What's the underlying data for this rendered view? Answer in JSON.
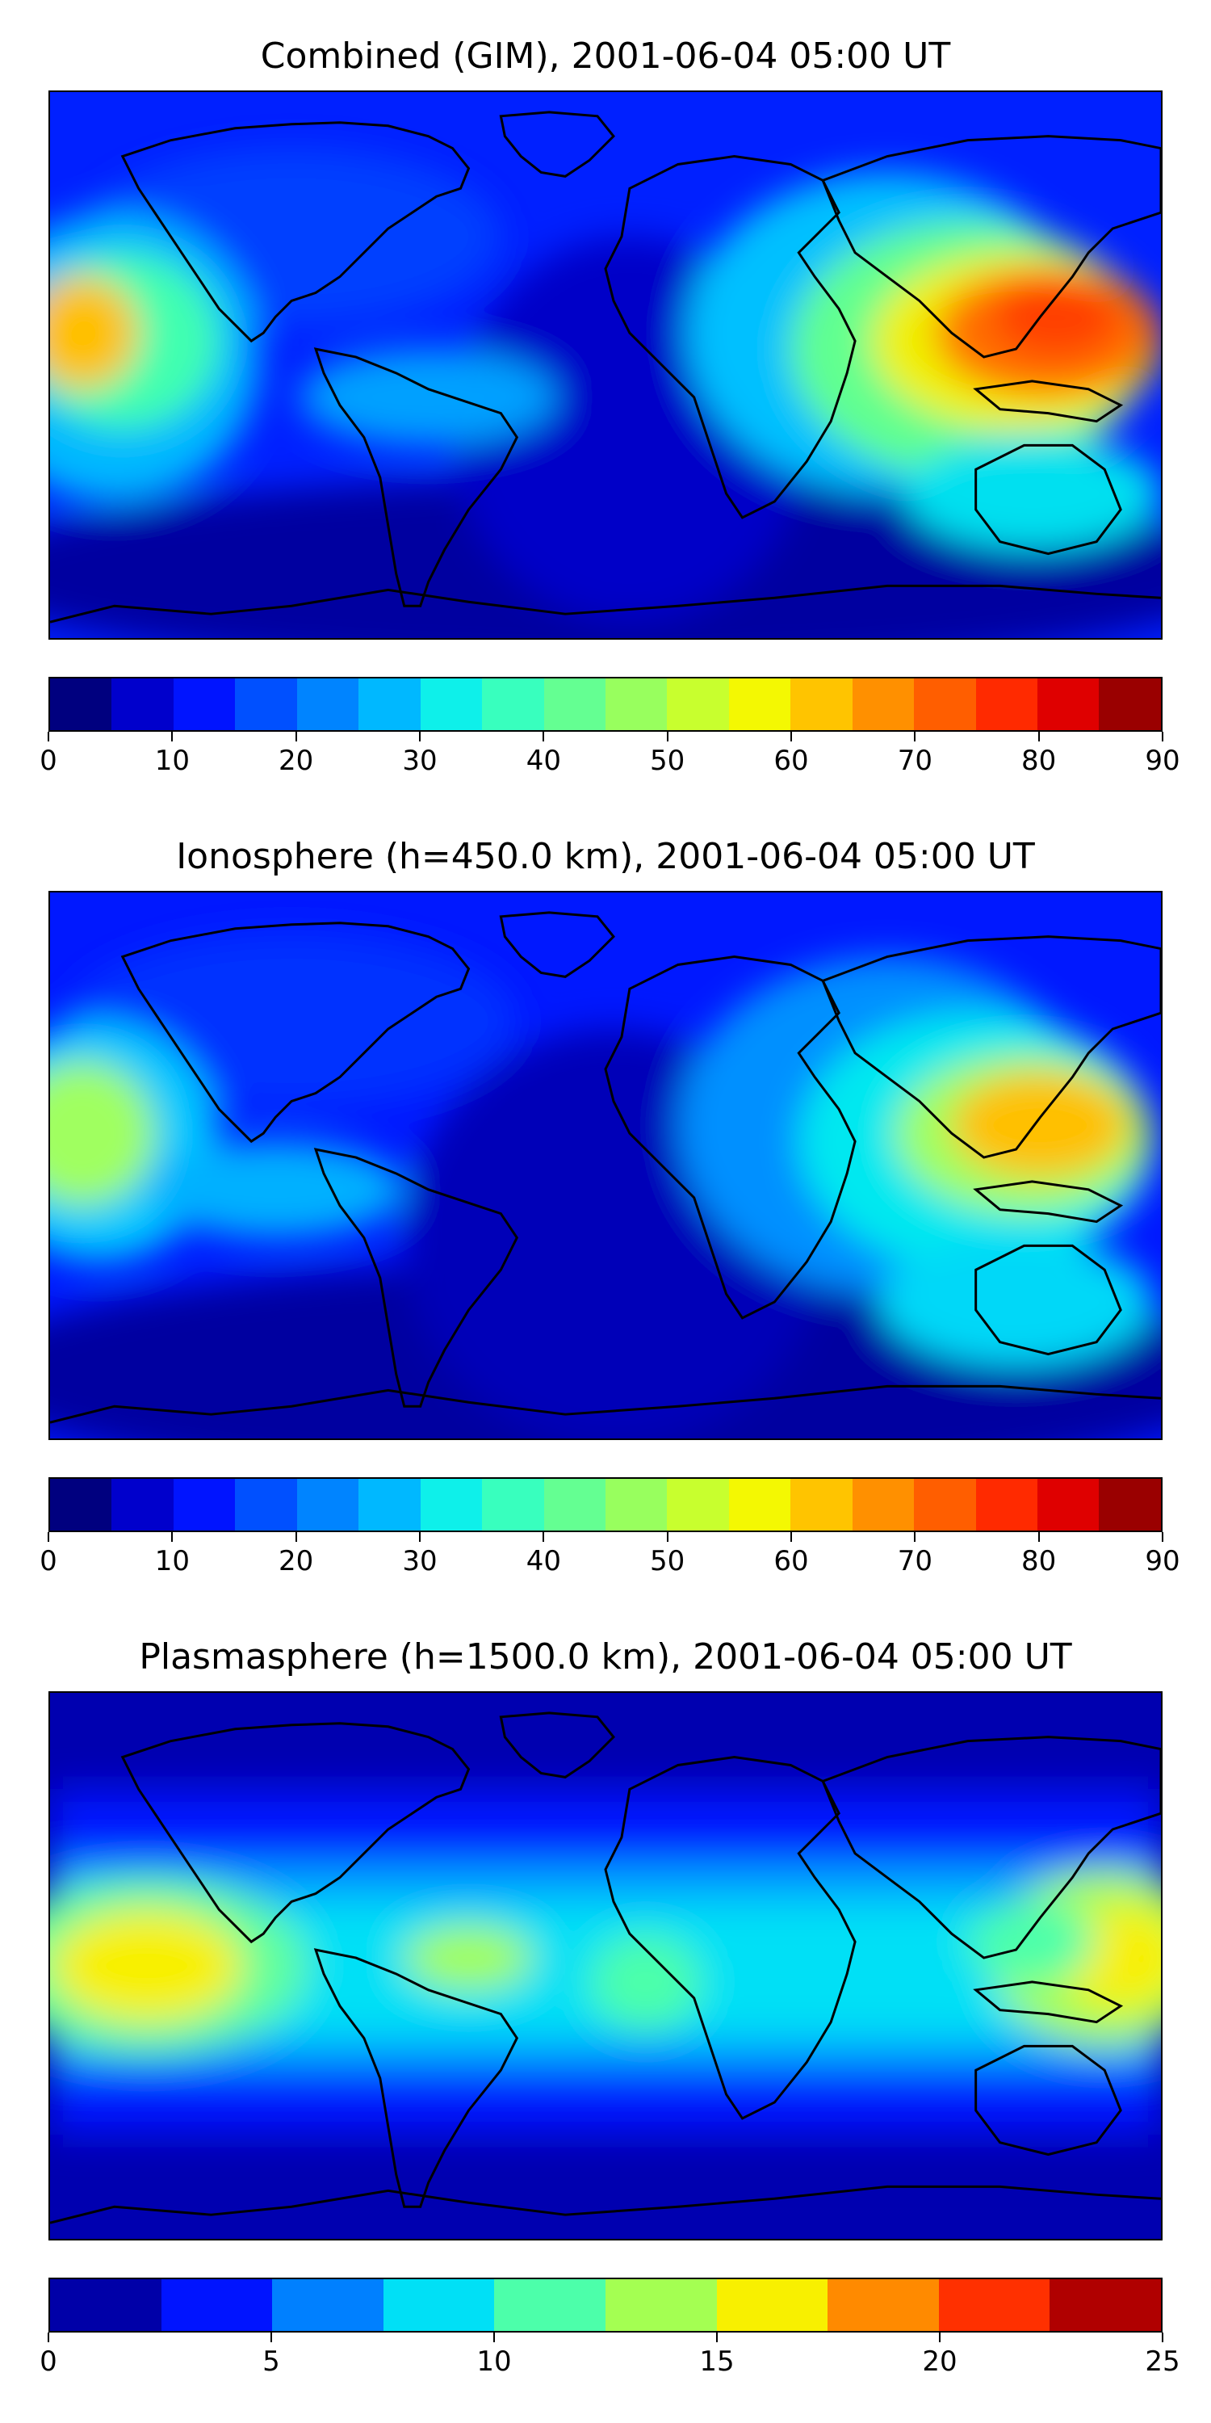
{
  "panels": [
    {
      "title": "Combined (GIM), 2001-06-04 05:00 UT",
      "colorbar": {
        "ticks": [
          "0",
          "10",
          "20",
          "30",
          "40",
          "50",
          "60",
          "70",
          "80",
          "90"
        ],
        "tick_values": [
          0,
          10,
          20,
          30,
          40,
          50,
          60,
          70,
          80,
          90
        ],
        "min": 0,
        "max": 90,
        "colors": [
          "#00007f",
          "#0000cc",
          "#0014ff",
          "#0050ff",
          "#0084ff",
          "#00b8ff",
          "#0ef0ea",
          "#38ffbe",
          "#64ff92",
          "#98ff5e",
          "#c8ff2e",
          "#f4f802",
          "#ffc400",
          "#ff9000",
          "#ff5e00",
          "#ff2a00",
          "#df0000",
          "#9a0000"
        ]
      }
    },
    {
      "title": "Ionosphere  (h=450.0 km), 2001-06-04 05:00 UT",
      "colorbar": {
        "ticks": [
          "0",
          "10",
          "20",
          "30",
          "40",
          "50",
          "60",
          "70",
          "80",
          "90"
        ],
        "tick_values": [
          0,
          10,
          20,
          30,
          40,
          50,
          60,
          70,
          80,
          90
        ],
        "min": 0,
        "max": 90,
        "colors": [
          "#00007f",
          "#0000cc",
          "#0014ff",
          "#0050ff",
          "#0084ff",
          "#00b8ff",
          "#0ef0ea",
          "#38ffbe",
          "#64ff92",
          "#98ff5e",
          "#c8ff2e",
          "#f4f802",
          "#ffc400",
          "#ff9000",
          "#ff5e00",
          "#ff2a00",
          "#df0000",
          "#9a0000"
        ]
      }
    },
    {
      "title": "Plasmasphere (h=1500.0 km), 2001-06-04 05:00 UT",
      "colorbar": {
        "ticks": [
          "0",
          "5",
          "10",
          "15",
          "20",
          "25"
        ],
        "tick_values": [
          0,
          5,
          10,
          15,
          20,
          25
        ],
        "min": 0,
        "max": 25,
        "colors": [
          "#0000a8",
          "#0014ff",
          "#0080ff",
          "#00e0f6",
          "#4cffaa",
          "#a4ff52",
          "#f8f000",
          "#ff8a00",
          "#ff3000",
          "#b00000"
        ]
      }
    }
  ]
}
